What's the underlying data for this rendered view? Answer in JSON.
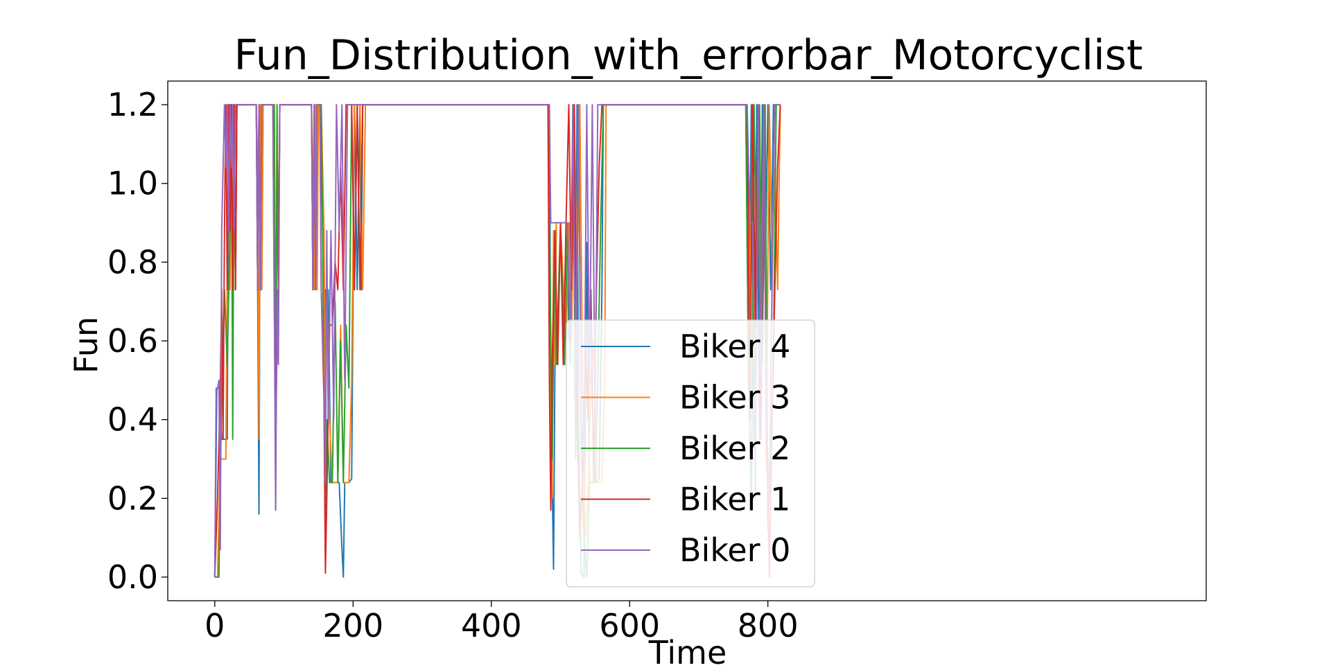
{
  "chart_data": {
    "type": "line",
    "title": "Fun_Distribution_with_errorbar_Motorcyclist",
    "xlabel": "Time",
    "ylabel": "Fun",
    "xlim": [
      -68,
      1434
    ],
    "ylim": [
      -0.06,
      1.26
    ],
    "xticks": [
      0,
      200,
      400,
      600,
      800
    ],
    "xtick_labels": [
      "0",
      "200",
      "400",
      "600",
      "800"
    ],
    "yticks": [
      0.0,
      0.2,
      0.4,
      0.6,
      0.8,
      1.0,
      1.2
    ],
    "ytick_labels": [
      "0.0",
      "0.2",
      "0.4",
      "0.6",
      "0.8",
      "1.0",
      "1.2"
    ],
    "grid": false,
    "legend_position": "lower-center",
    "series": [
      {
        "name": "Biker 4",
        "color": "#1f77b4",
        "x": [
          0,
          3,
          6,
          10,
          14,
          18,
          20,
          24,
          26,
          28,
          30,
          32,
          60,
          62,
          64,
          66,
          68,
          70,
          72,
          86,
          88,
          90,
          92,
          94,
          96,
          98,
          140,
          142,
          144,
          146,
          148,
          150,
          152,
          156,
          158,
          160,
          164,
          168,
          172,
          176,
          180,
          184,
          186,
          188,
          190,
          194,
          198,
          202,
          206,
          210,
          212,
          214,
          216,
          220,
          480,
          484,
          486,
          488,
          490,
          492,
          494,
          500,
          510,
          512,
          514,
          516,
          518,
          520,
          522,
          524,
          526,
          528,
          530,
          534,
          538,
          542,
          546,
          550,
          556,
          560,
          562,
          566,
          768,
          772,
          776,
          780,
          784,
          788,
          792,
          796,
          800,
          804,
          808,
          812,
          816
        ],
        "y": [
          0.0,
          0.48,
          0.48,
          0.35,
          0.35,
          0.35,
          1.2,
          1.2,
          0.73,
          1.2,
          0.73,
          1.2,
          1.2,
          0.73,
          0.16,
          1.2,
          0.73,
          1.2,
          1.2,
          1.2,
          0.5,
          1.04,
          0.73,
          1.2,
          1.2,
          1.2,
          1.2,
          0.73,
          1.2,
          0.73,
          1.2,
          1.2,
          1.2,
          0.88,
          0.5,
          0.73,
          0.73,
          0.24,
          0.24,
          0.24,
          0.24,
          0.07,
          0.0,
          0.24,
          0.24,
          0.24,
          0.25,
          1.2,
          0.73,
          1.2,
          0.73,
          1.2,
          1.2,
          1.2,
          1.2,
          1.2,
          0.5,
          0.25,
          0.02,
          0.54,
          0.9,
          0.9,
          0.9,
          0.6,
          0.9,
          0.6,
          0.9,
          1.2,
          0.6,
          1.2,
          0.4,
          0.2,
          0.01,
          0.0,
          0.85,
          0.24,
          0.24,
          0.24,
          0.25,
          0.73,
          1.2,
          1.2,
          1.2,
          0.5,
          1.2,
          0.35,
          1.2,
          0.35,
          1.2,
          0.73,
          1.2,
          0.73,
          1.2,
          1.2,
          1.2
        ]
      },
      {
        "name": "Biker 3",
        "color": "#ff7f0e",
        "x": [
          0,
          4,
          8,
          12,
          16,
          20,
          22,
          24,
          26,
          28,
          30,
          32,
          60,
          62,
          64,
          66,
          68,
          70,
          72,
          86,
          88,
          90,
          92,
          94,
          98,
          140,
          142,
          144,
          146,
          148,
          150,
          154,
          158,
          160,
          162,
          166,
          170,
          174,
          178,
          182,
          186,
          190,
          194,
          198,
          202,
          206,
          210,
          214,
          218,
          220,
          482,
          486,
          488,
          490,
          492,
          494,
          500,
          508,
          512,
          516,
          520,
          524,
          528,
          532,
          536,
          540,
          544,
          548,
          552,
          556,
          560,
          564,
          566,
          770,
          774,
          778,
          782,
          786,
          790,
          794,
          798,
          802,
          806,
          810,
          814,
          818
        ],
        "y": [
          0.0,
          0.0,
          0.3,
          0.3,
          0.3,
          1.2,
          0.73,
          1.2,
          0.73,
          1.2,
          0.73,
          1.2,
          1.2,
          1.04,
          0.35,
          1.2,
          0.73,
          1.2,
          1.2,
          1.2,
          0.5,
          1.2,
          0.73,
          1.2,
          1.2,
          1.2,
          1.04,
          0.73,
          1.2,
          0.73,
          1.2,
          1.2,
          0.88,
          0.35,
          0.73,
          0.4,
          0.24,
          0.24,
          0.24,
          0.64,
          0.24,
          0.24,
          0.24,
          0.5,
          1.2,
          1.2,
          1.2,
          0.73,
          1.2,
          1.2,
          1.2,
          0.4,
          0.2,
          0.88,
          0.54,
          0.9,
          0.9,
          0.6,
          0.9,
          0.6,
          1.2,
          0.73,
          1.2,
          0.5,
          0.1,
          0.2,
          0.5,
          0.6,
          0.24,
          0.24,
          0.24,
          0.5,
          1.2,
          1.2,
          0.7,
          1.2,
          0.5,
          1.2,
          0.6,
          1.2,
          0.4,
          1.2,
          0.8,
          1.04,
          0.73,
          1.2
        ]
      },
      {
        "name": "Biker 2",
        "color": "#2ca02c",
        "x": [
          0,
          6,
          10,
          14,
          18,
          22,
          24,
          26,
          28,
          30,
          32,
          60,
          62,
          64,
          66,
          68,
          70,
          86,
          88,
          90,
          92,
          94,
          98,
          140,
          142,
          144,
          146,
          148,
          150,
          154,
          156,
          160,
          162,
          166,
          170,
          174,
          178,
          182,
          186,
          190,
          194,
          198,
          202,
          206,
          210,
          214,
          218,
          220,
          482,
          484,
          488,
          492,
          494,
          500,
          506,
          510,
          514,
          518,
          522,
          526,
          530,
          534,
          538,
          542,
          546,
          550,
          554,
          558,
          562,
          566,
          768,
          772,
          776,
          780,
          784,
          788,
          792,
          796,
          800,
          804,
          808,
          812,
          816
        ],
        "y": [
          0.0,
          0.0,
          0.48,
          0.73,
          0.54,
          0.88,
          1.2,
          0.35,
          1.2,
          0.73,
          1.2,
          1.2,
          0.73,
          1.2,
          0.73,
          1.2,
          1.2,
          1.2,
          0.17,
          1.2,
          0.73,
          1.2,
          1.2,
          1.2,
          0.73,
          1.2,
          0.73,
          1.2,
          1.2,
          1.2,
          0.88,
          0.06,
          0.4,
          0.24,
          0.24,
          0.7,
          0.24,
          0.6,
          0.24,
          0.64,
          0.48,
          1.2,
          0.73,
          1.2,
          0.73,
          1.2,
          1.2,
          1.2,
          1.2,
          0.9,
          0.3,
          0.88,
          0.54,
          0.9,
          0.54,
          0.9,
          0.54,
          1.2,
          0.3,
          1.2,
          0.35,
          0.1,
          0.0,
          0.24,
          0.24,
          0.24,
          0.5,
          0.88,
          1.2,
          1.2,
          1.2,
          0.5,
          0.17,
          1.2,
          0.73,
          1.2,
          0.54,
          1.2,
          0.12,
          0.3,
          0.54,
          1.2,
          1.2
        ]
      },
      {
        "name": "Biker 1",
        "color": "#d62728",
        "x": [
          0,
          4,
          8,
          10,
          12,
          14,
          16,
          18,
          20,
          22,
          24,
          26,
          28,
          30,
          32,
          60,
          62,
          64,
          66,
          68,
          70,
          84,
          86,
          88,
          90,
          92,
          94,
          98,
          140,
          142,
          144,
          146,
          148,
          152,
          154,
          158,
          160,
          162,
          166,
          170,
          174,
          178,
          182,
          186,
          190,
          194,
          198,
          202,
          206,
          210,
          214,
          218,
          220,
          482,
          484,
          486,
          488,
          492,
          496,
          500,
          504,
          508,
          512,
          516,
          520,
          524,
          528,
          532,
          536,
          540,
          544,
          548,
          552,
          556,
          560,
          562,
          566,
          770,
          774,
          778,
          782,
          786,
          790,
          794,
          798,
          800,
          802,
          806,
          810,
          814,
          818
        ],
        "y": [
          0.0,
          0.2,
          0.48,
          0.73,
          0.35,
          0.88,
          1.2,
          0.73,
          1.2,
          0.88,
          1.2,
          0.73,
          1.2,
          0.73,
          1.2,
          1.2,
          0.73,
          1.2,
          0.73,
          1.2,
          1.2,
          1.2,
          0.7,
          0.36,
          0.58,
          0.73,
          1.2,
          1.2,
          1.2,
          0.73,
          1.2,
          0.73,
          1.2,
          1.2,
          0.73,
          0.45,
          0.01,
          0.2,
          0.64,
          0.64,
          0.8,
          0.73,
          1.04,
          0.73,
          1.2,
          1.2,
          1.2,
          0.73,
          1.2,
          0.73,
          1.2,
          1.2,
          1.2,
          1.2,
          0.5,
          0.17,
          0.54,
          0.88,
          0.54,
          0.9,
          0.54,
          0.9,
          1.2,
          0.73,
          1.2,
          0.4,
          0.1,
          0.24,
          0.6,
          0.4,
          0.73,
          0.24,
          0.73,
          1.04,
          1.2,
          1.2,
          1.2,
          1.2,
          0.4,
          1.2,
          0.64,
          1.2,
          0.35,
          1.2,
          0.3,
          0.24,
          0.0,
          0.4,
          0.73,
          1.04,
          1.2
        ]
      },
      {
        "name": "Biker 0",
        "color": "#9467bd",
        "x": [
          0,
          2,
          4,
          6,
          8,
          10,
          12,
          14,
          16,
          18,
          20,
          22,
          24,
          26,
          28,
          30,
          32,
          60,
          62,
          64,
          66,
          68,
          70,
          84,
          86,
          88,
          90,
          92,
          94,
          98,
          140,
          142,
          144,
          146,
          148,
          152,
          154,
          158,
          160,
          162,
          164,
          168,
          172,
          176,
          180,
          184,
          188,
          192,
          196,
          200,
          204,
          208,
          212,
          216,
          220,
          480,
          484,
          486,
          488,
          492,
          496,
          500,
          510,
          514,
          518,
          522,
          526,
          530,
          534,
          538,
          542,
          546,
          550,
          554,
          558,
          562,
          566,
          770,
          774,
          778,
          782,
          786,
          790,
          794,
          798,
          802,
          806,
          810,
          814,
          818
        ],
        "y": [
          0.0,
          0.48,
          0.48,
          0.5,
          0.07,
          0.88,
          1.04,
          1.2,
          1.04,
          1.2,
          0.88,
          1.2,
          1.04,
          1.2,
          0.88,
          1.2,
          1.2,
          1.2,
          0.73,
          1.2,
          0.73,
          1.2,
          1.2,
          1.2,
          0.73,
          0.17,
          0.73,
          0.54,
          1.2,
          1.2,
          1.2,
          0.73,
          1.2,
          0.73,
          1.2,
          1.2,
          0.73,
          0.5,
          0.24,
          0.88,
          0.4,
          0.88,
          0.4,
          1.2,
          0.88,
          1.2,
          0.5,
          1.2,
          1.2,
          1.2,
          1.2,
          1.2,
          1.2,
          1.2,
          1.2,
          1.2,
          1.2,
          0.9,
          0.9,
          0.9,
          0.9,
          0.9,
          0.9,
          0.6,
          1.2,
          0.5,
          1.2,
          0.4,
          0.3,
          1.2,
          0.5,
          1.2,
          0.4,
          1.2,
          1.2,
          1.2,
          1.2,
          1.2,
          0.9,
          0.9,
          0.2,
          1.2,
          0.5,
          1.2,
          0.4,
          0.2,
          0.73,
          1.2,
          1.2,
          1.2
        ]
      }
    ]
  }
}
